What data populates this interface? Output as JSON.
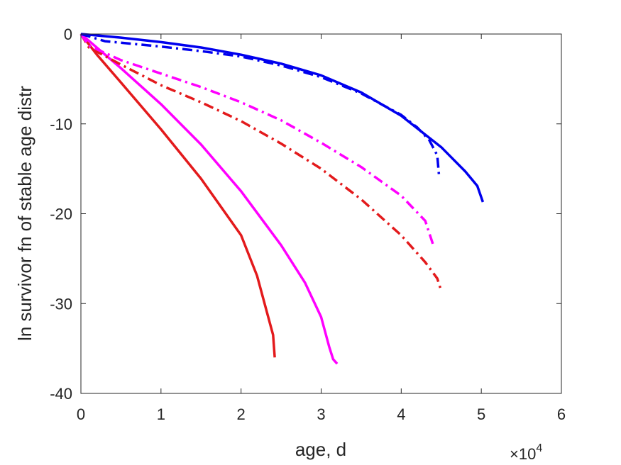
{
  "chart_data": {
    "type": "line",
    "title": "",
    "xlabel": "age, d",
    "ylabel": "ln survivor fn of stable age distr",
    "x_multiplier_label": {
      "base": "×10",
      "exponent": "4"
    },
    "xlim": [
      0,
      6
    ],
    "ylim": [
      -40,
      0
    ],
    "xticks": [
      "0",
      "1",
      "2",
      "3",
      "4",
      "5",
      "6"
    ],
    "yticks": [
      "0",
      "-10",
      "-20",
      "-30",
      "-40"
    ],
    "grid": false,
    "legend": "none",
    "series": [
      {
        "color": "#e31a1c",
        "style": "solid",
        "points": [
          [
            0,
            0
          ],
          [
            0.2,
            -2.3
          ],
          [
            0.5,
            -5.4
          ],
          [
            1.0,
            -10.6
          ],
          [
            1.5,
            -16.1
          ],
          [
            2.0,
            -22.4
          ],
          [
            2.2,
            -26.9
          ],
          [
            2.4,
            -33.5
          ],
          [
            2.42,
            -36.0
          ]
        ]
      },
      {
        "color": "#ff00ff",
        "style": "solid",
        "points": [
          [
            0,
            0
          ],
          [
            0.5,
            -3.8
          ],
          [
            1.0,
            -7.8
          ],
          [
            1.5,
            -12.3
          ],
          [
            2.0,
            -17.5
          ],
          [
            2.5,
            -23.5
          ],
          [
            2.8,
            -27.7
          ],
          [
            3.0,
            -31.5
          ],
          [
            3.1,
            -34.8
          ],
          [
            3.15,
            -36.2
          ],
          [
            3.2,
            -36.7
          ]
        ]
      },
      {
        "color": "#e31a1c",
        "style": "dashdot",
        "points": [
          [
            0,
            0
          ],
          [
            0.1,
            -1.5
          ],
          [
            0.5,
            -3.4
          ],
          [
            1.0,
            -5.7
          ],
          [
            1.5,
            -7.6
          ],
          [
            2.0,
            -9.7
          ],
          [
            2.5,
            -12.2
          ],
          [
            3.0,
            -15.0
          ],
          [
            3.5,
            -18.4
          ],
          [
            4.0,
            -22.4
          ],
          [
            4.3,
            -25.4
          ],
          [
            4.45,
            -27.2
          ],
          [
            4.5,
            -28.6
          ]
        ]
      },
      {
        "color": "#ff00ff",
        "style": "dashdot",
        "points": [
          [
            0,
            0
          ],
          [
            0.1,
            -1.3
          ],
          [
            0.5,
            -2.9
          ],
          [
            1.0,
            -4.4
          ],
          [
            1.5,
            -5.9
          ],
          [
            2.0,
            -7.6
          ],
          [
            2.5,
            -9.6
          ],
          [
            3.0,
            -12.1
          ],
          [
            3.5,
            -14.8
          ],
          [
            4.0,
            -18.0
          ],
          [
            4.3,
            -20.8
          ],
          [
            4.4,
            -23.5
          ]
        ]
      },
      {
        "color": "#0000ee",
        "style": "dashdot",
        "points": [
          [
            0,
            0
          ],
          [
            0.3,
            -0.8
          ],
          [
            1.0,
            -1.4
          ],
          [
            1.5,
            -1.9
          ],
          [
            2.0,
            -2.5
          ],
          [
            2.5,
            -3.5
          ],
          [
            3.0,
            -4.8
          ],
          [
            3.5,
            -6.6
          ],
          [
            4.0,
            -9.0
          ],
          [
            4.2,
            -10.4
          ],
          [
            4.35,
            -11.8
          ],
          [
            4.45,
            -13.5
          ],
          [
            4.47,
            -15.6
          ]
        ]
      },
      {
        "color": "#0000ee",
        "style": "solid",
        "points": [
          [
            0,
            0
          ],
          [
            0.5,
            -0.4
          ],
          [
            1.0,
            -0.9
          ],
          [
            1.5,
            -1.5
          ],
          [
            2.0,
            -2.3
          ],
          [
            2.5,
            -3.3
          ],
          [
            3.0,
            -4.6
          ],
          [
            3.5,
            -6.5
          ],
          [
            4.0,
            -9.1
          ],
          [
            4.5,
            -12.6
          ],
          [
            4.8,
            -15.3
          ],
          [
            4.95,
            -16.9
          ],
          [
            5.02,
            -18.7
          ]
        ]
      }
    ]
  }
}
